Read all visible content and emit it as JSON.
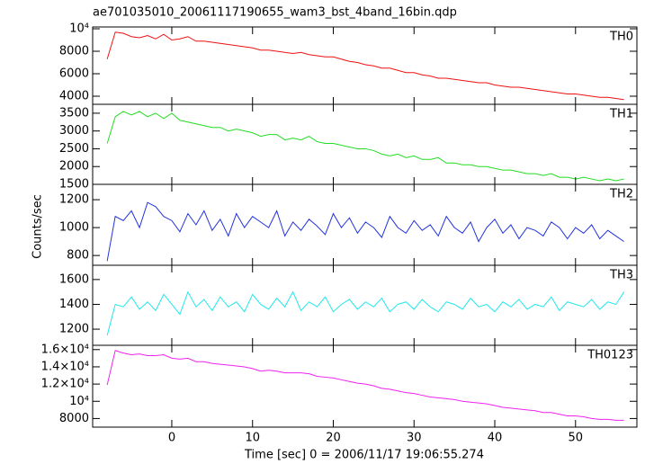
{
  "title": "ae701035010_20061117190655_wam3_bst_4band_16bin.qdp",
  "xlabel": "Time [sec] 0 = 2006/11/17 19:06:55.274",
  "ylabel": "Counts/sec",
  "x": [
    -8,
    -7,
    -6,
    -5,
    -4,
    -3,
    -2,
    -1,
    0,
    1,
    2,
    3,
    4,
    5,
    6,
    7,
    8,
    9,
    10,
    11,
    12,
    13,
    14,
    15,
    16,
    17,
    18,
    19,
    20,
    21,
    22,
    23,
    24,
    25,
    26,
    27,
    28,
    29,
    30,
    31,
    32,
    33,
    34,
    35,
    36,
    37,
    38,
    39,
    40,
    41,
    42,
    43,
    44,
    45,
    46,
    47,
    48,
    49,
    50,
    51,
    52,
    53,
    54,
    55,
    56
  ],
  "xlim": [
    -9.8,
    57.6
  ],
  "xticks": [
    0,
    10,
    20,
    30,
    40,
    50
  ],
  "chart_data": [
    {
      "type": "line",
      "label": "TH0",
      "color": "#ee1111",
      "ylim": [
        3280,
        10160
      ],
      "yticks": [
        {
          "value": 10000,
          "label": "10⁴"
        },
        8000,
        6000,
        4000
      ],
      "values": [
        7300,
        9700,
        9600,
        9300,
        9200,
        9400,
        9100,
        9500,
        9000,
        9100,
        9300,
        8900,
        8900,
        8800,
        8700,
        8600,
        8500,
        8400,
        8300,
        8100,
        8100,
        8000,
        7900,
        7800,
        7900,
        7700,
        7600,
        7500,
        7500,
        7300,
        7100,
        7000,
        6800,
        6700,
        6500,
        6500,
        6300,
        6100,
        6100,
        5900,
        5800,
        5600,
        5600,
        5500,
        5400,
        5300,
        5200,
        5200,
        5000,
        4900,
        4800,
        4800,
        4700,
        4600,
        4500,
        4400,
        4300,
        4200,
        4200,
        4100,
        4000,
        3900,
        3900,
        3800,
        3700
      ]
    },
    {
      "type": "line",
      "label": "TH1",
      "color": "#22dd22",
      "ylim": [
        1500,
        3750
      ],
      "yticks": [
        3500,
        3000,
        2500,
        2000,
        1500
      ],
      "values": [
        2650,
        3400,
        3550,
        3450,
        3550,
        3400,
        3500,
        3350,
        3500,
        3300,
        3250,
        3200,
        3150,
        3100,
        3100,
        3000,
        3050,
        3000,
        2950,
        2850,
        2900,
        2900,
        2750,
        2800,
        2750,
        2850,
        2700,
        2650,
        2650,
        2600,
        2550,
        2500,
        2500,
        2450,
        2350,
        2300,
        2350,
        2250,
        2300,
        2200,
        2200,
        2250,
        2100,
        2100,
        2050,
        2050,
        2000,
        2000,
        1950,
        1900,
        1900,
        1850,
        1800,
        1800,
        1750,
        1800,
        1700,
        1700,
        1650,
        1700,
        1650,
        1600,
        1650,
        1600,
        1650
      ]
    },
    {
      "type": "line",
      "label": "TH2",
      "color": "#2233dd",
      "ylim": [
        730,
        1310
      ],
      "yticks": [
        1200,
        1000,
        800
      ],
      "values": [
        760,
        1080,
        1050,
        1120,
        1000,
        1180,
        1150,
        1080,
        1050,
        970,
        1100,
        1020,
        1120,
        980,
        1060,
        940,
        1100,
        1000,
        1080,
        1040,
        1000,
        1120,
        940,
        1040,
        980,
        1060,
        1010,
        950,
        1100,
        1000,
        1070,
        960,
        1040,
        1000,
        930,
        1080,
        1000,
        960,
        1050,
        980,
        1020,
        940,
        1080,
        1000,
        960,
        1040,
        900,
        1000,
        1060,
        960,
        1020,
        920,
        1000,
        980,
        940,
        1040,
        1000,
        920,
        1000,
        960,
        1020,
        920,
        980,
        940,
        900
      ]
    },
    {
      "type": "line",
      "label": "TH3",
      "color": "#22e8e8",
      "ylim": [
        1070,
        1715
      ],
      "yticks": [
        1600,
        1400,
        1200
      ],
      "values": [
        1150,
        1400,
        1380,
        1460,
        1360,
        1420,
        1350,
        1480,
        1400,
        1320,
        1500,
        1380,
        1440,
        1350,
        1460,
        1380,
        1420,
        1340,
        1480,
        1400,
        1360,
        1450,
        1380,
        1500,
        1350,
        1420,
        1380,
        1460,
        1340,
        1400,
        1440,
        1360,
        1420,
        1380,
        1450,
        1340,
        1400,
        1420,
        1360,
        1440,
        1380,
        1340,
        1420,
        1400,
        1360,
        1450,
        1380,
        1400,
        1340,
        1420,
        1380,
        1440,
        1360,
        1400,
        1380,
        1460,
        1350,
        1420,
        1400,
        1380,
        1440,
        1360,
        1420,
        1400,
        1500
      ]
    },
    {
      "type": "line",
      "label": "TH0123",
      "color": "#ee22ee",
      "ylim": [
        7000,
        16500
      ],
      "yticks": [
        {
          "value": 16000,
          "label": "1.6×10⁴"
        },
        {
          "value": 14000,
          "label": "1.4×10⁴"
        },
        {
          "value": 12000,
          "label": "1.2×10⁴"
        },
        {
          "value": 10000,
          "label": "10⁴"
        },
        8000
      ],
      "values": [
        11900,
        15900,
        15600,
        15400,
        15500,
        15300,
        15300,
        15400,
        15000,
        14900,
        15000,
        14600,
        14600,
        14400,
        14300,
        14200,
        14100,
        14000,
        13800,
        13500,
        13600,
        13500,
        13300,
        13300,
        13300,
        13200,
        12900,
        12800,
        12700,
        12500,
        12300,
        12100,
        12000,
        11800,
        11500,
        11400,
        11200,
        11000,
        10900,
        10700,
        10500,
        10400,
        10300,
        10200,
        10000,
        9900,
        9800,
        9700,
        9500,
        9300,
        9200,
        9100,
        9000,
        8900,
        8700,
        8700,
        8500,
        8300,
        8300,
        8200,
        8000,
        7900,
        7900,
        7800,
        7800
      ]
    }
  ]
}
